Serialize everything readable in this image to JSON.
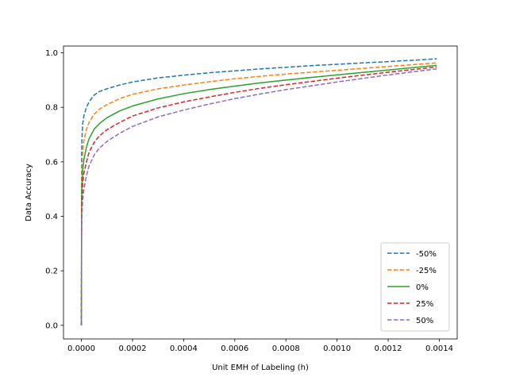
{
  "chart_data": {
    "type": "line",
    "title": "",
    "xlabel": "Unit EMH of Labeling (h)",
    "ylabel": "Data Accuracy",
    "xlim": [
      -7e-05,
      0.00147
    ],
    "ylim": [
      -0.05,
      1.025
    ],
    "xticks": [
      0.0,
      0.0002,
      0.0004,
      0.0006,
      0.0008,
      0.001,
      0.0012,
      0.0014
    ],
    "xtick_labels": [
      "0.0000",
      "0.0002",
      "0.0004",
      "0.0006",
      "0.0008",
      "0.0010",
      "0.0012",
      "0.0014"
    ],
    "yticks": [
      0.0,
      0.2,
      0.4,
      0.6,
      0.8,
      1.0
    ],
    "ytick_labels": [
      "0.0",
      "0.2",
      "0.4",
      "0.6",
      "0.8",
      "1.0"
    ],
    "grid": false,
    "legend_position": "lower-right",
    "x": [
      0,
      1e-06,
      2e-06,
      5e-06,
      1e-05,
      2e-05,
      3e-05,
      5e-05,
      7e-05,
      0.0001,
      0.00015,
      0.0002,
      0.0003,
      0.0004,
      0.0005,
      0.0006,
      0.0007,
      0.0008,
      0.0009,
      0.001,
      0.0011,
      0.0012,
      0.0013,
      0.00139
    ],
    "series": [
      {
        "name": "-50%",
        "color": "#1f77b4",
        "dash": true,
        "values": [
          0.0,
          0.63,
          0.68,
          0.74,
          0.77,
          0.8,
          0.82,
          0.845,
          0.858,
          0.868,
          0.882,
          0.893,
          0.908,
          0.918,
          0.927,
          0.934,
          0.941,
          0.947,
          0.953,
          0.958,
          0.963,
          0.968,
          0.973,
          0.978
        ]
      },
      {
        "name": "-25%",
        "color": "#ff7f0e",
        "dash": true,
        "values": [
          0.0,
          0.52,
          0.58,
          0.64,
          0.68,
          0.72,
          0.745,
          0.775,
          0.793,
          0.81,
          0.832,
          0.848,
          0.868,
          0.882,
          0.894,
          0.905,
          0.914,
          0.922,
          0.929,
          0.936,
          0.943,
          0.95,
          0.957,
          0.963
        ]
      },
      {
        "name": "0%",
        "color": "#2ca02c",
        "dash": false,
        "values": [
          0.0,
          0.45,
          0.51,
          0.57,
          0.61,
          0.655,
          0.685,
          0.72,
          0.74,
          0.762,
          0.787,
          0.805,
          0.831,
          0.85,
          0.865,
          0.878,
          0.89,
          0.9,
          0.91,
          0.919,
          0.928,
          0.937,
          0.946,
          0.954
        ]
      },
      {
        "name": "25%",
        "color": "#d62728",
        "dash": true,
        "values": [
          0.0,
          0.4,
          0.46,
          0.52,
          0.56,
          0.6,
          0.635,
          0.672,
          0.695,
          0.718,
          0.745,
          0.768,
          0.798,
          0.82,
          0.838,
          0.855,
          0.87,
          0.883,
          0.895,
          0.907,
          0.918,
          0.929,
          0.939,
          0.948
        ]
      },
      {
        "name": "50%",
        "color": "#9467bd",
        "dash": true,
        "values": [
          0.0,
          0.34,
          0.4,
          0.46,
          0.5,
          0.55,
          0.585,
          0.625,
          0.65,
          0.675,
          0.705,
          0.73,
          0.765,
          0.79,
          0.812,
          0.832,
          0.849,
          0.865,
          0.879,
          0.893,
          0.906,
          0.919,
          0.931,
          0.941
        ]
      }
    ]
  }
}
